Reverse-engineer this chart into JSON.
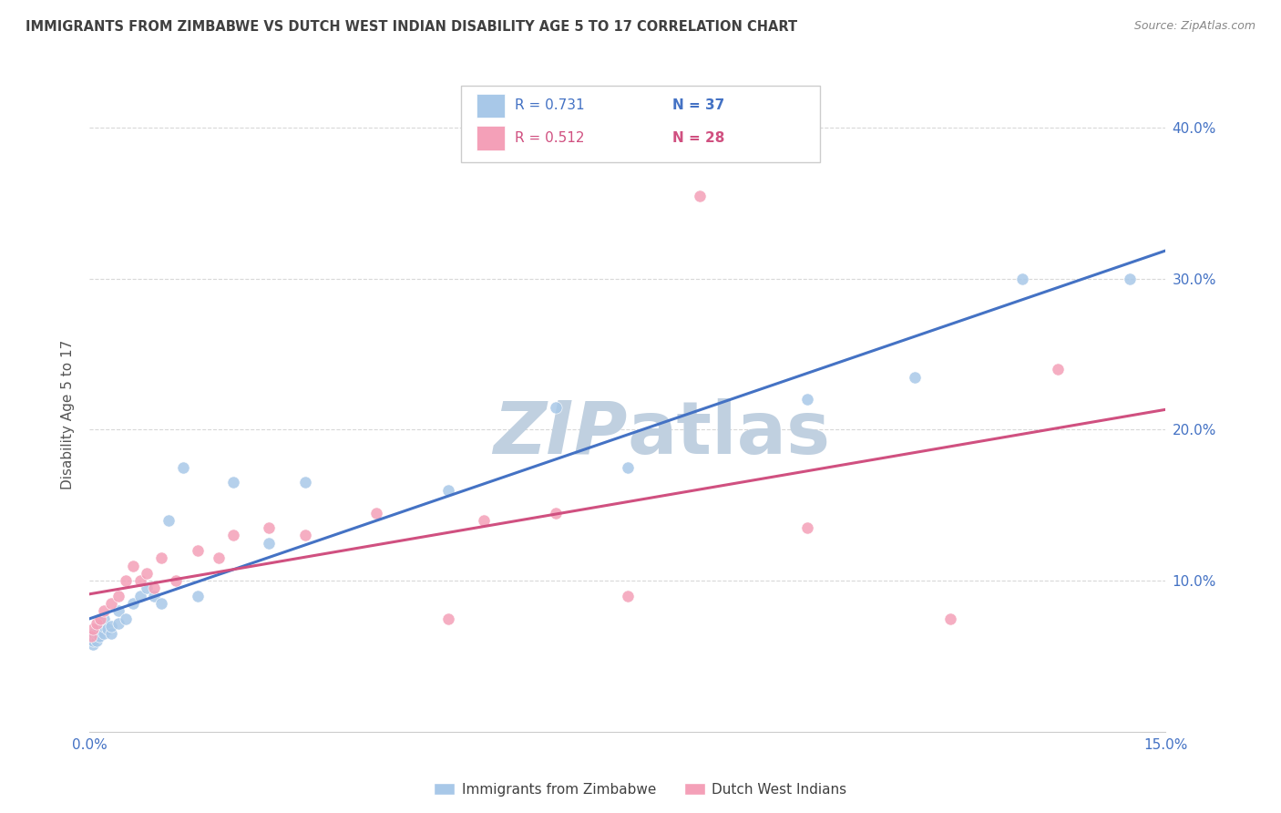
{
  "title": "IMMIGRANTS FROM ZIMBABWE VS DUTCH WEST INDIAN DISABILITY AGE 5 TO 17 CORRELATION CHART",
  "source": "Source: ZipAtlas.com",
  "ylabel_label": "Disability Age 5 to 17",
  "xlim": [
    0.0,
    0.15
  ],
  "ylim": [
    0.0,
    0.42
  ],
  "legend_blue_r": "0.731",
  "legend_blue_n": "37",
  "legend_pink_r": "0.512",
  "legend_pink_n": "28",
  "legend_label_blue": "Immigrants from Zimbabwe",
  "legend_label_pink": "Dutch West Indians",
  "blue_color": "#a8c8e8",
  "blue_line_color": "#4472c4",
  "pink_color": "#f4a0b8",
  "pink_line_color": "#d05080",
  "axis_color": "#4472c4",
  "title_color": "#404040",
  "source_color": "#888888",
  "grid_color": "#d8d8d8",
  "watermark_color": "#c0d0e0",
  "blue_x": [
    0.0002,
    0.0004,
    0.0005,
    0.0006,
    0.0008,
    0.001,
    0.001,
    0.0012,
    0.0014,
    0.0015,
    0.002,
    0.002,
    0.002,
    0.0025,
    0.003,
    0.003,
    0.004,
    0.004,
    0.005,
    0.006,
    0.007,
    0.008,
    0.009,
    0.01,
    0.011,
    0.013,
    0.015,
    0.02,
    0.025,
    0.03,
    0.05,
    0.065,
    0.075,
    0.1,
    0.115,
    0.13,
    0.145
  ],
  "blue_y": [
    0.062,
    0.058,
    0.06,
    0.065,
    0.063,
    0.06,
    0.065,
    0.068,
    0.063,
    0.07,
    0.065,
    0.07,
    0.075,
    0.068,
    0.065,
    0.07,
    0.072,
    0.08,
    0.075,
    0.085,
    0.09,
    0.095,
    0.09,
    0.085,
    0.14,
    0.175,
    0.09,
    0.165,
    0.125,
    0.165,
    0.16,
    0.215,
    0.175,
    0.22,
    0.235,
    0.3,
    0.3
  ],
  "pink_x": [
    0.0002,
    0.0005,
    0.001,
    0.0015,
    0.002,
    0.003,
    0.004,
    0.005,
    0.006,
    0.007,
    0.008,
    0.009,
    0.01,
    0.012,
    0.015,
    0.018,
    0.02,
    0.025,
    0.03,
    0.04,
    0.05,
    0.055,
    0.065,
    0.075,
    0.085,
    0.1,
    0.12,
    0.135
  ],
  "pink_y": [
    0.063,
    0.068,
    0.072,
    0.075,
    0.08,
    0.085,
    0.09,
    0.1,
    0.11,
    0.1,
    0.105,
    0.095,
    0.115,
    0.1,
    0.12,
    0.115,
    0.13,
    0.135,
    0.13,
    0.145,
    0.075,
    0.14,
    0.145,
    0.09,
    0.355,
    0.135,
    0.075,
    0.24
  ]
}
